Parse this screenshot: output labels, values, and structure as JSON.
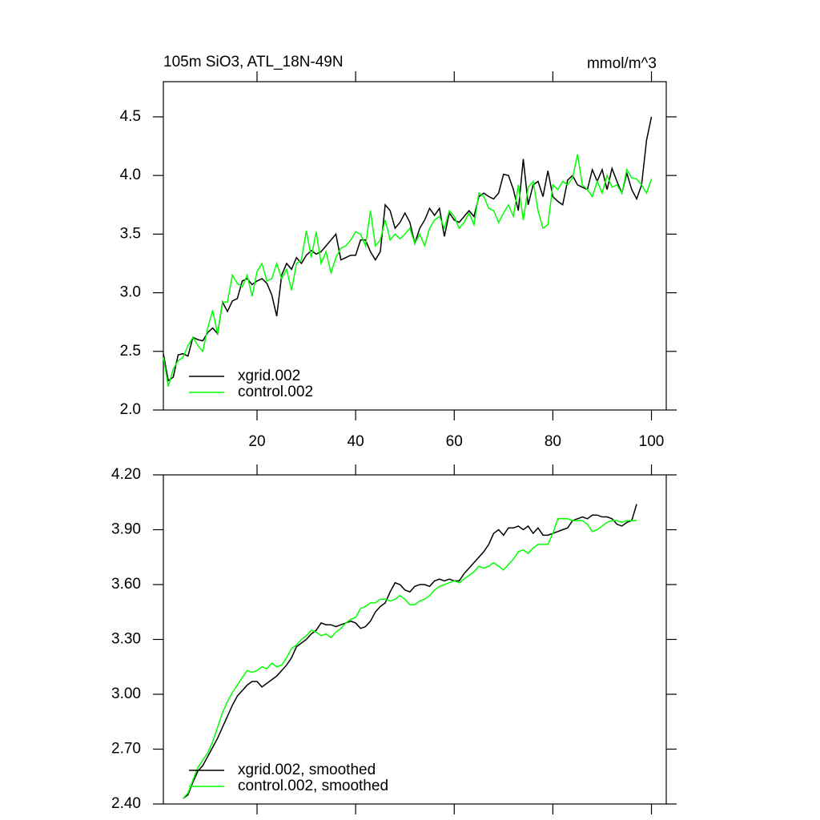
{
  "chart_data": [
    {
      "type": "line",
      "title": "105m SiO3, ATL_18N-49N",
      "units": "mmol/m^3",
      "x": [
        1,
        2,
        3,
        4,
        5,
        6,
        7,
        8,
        9,
        10,
        11,
        12,
        13,
        14,
        15,
        16,
        17,
        18,
        19,
        20,
        21,
        22,
        23,
        24,
        25,
        26,
        27,
        28,
        29,
        30,
        31,
        32,
        33,
        34,
        35,
        36,
        37,
        38,
        39,
        40,
        41,
        42,
        43,
        44,
        45,
        46,
        47,
        48,
        49,
        50,
        51,
        52,
        53,
        54,
        55,
        56,
        57,
        58,
        59,
        60,
        61,
        62,
        63,
        64,
        65,
        66,
        67,
        68,
        69,
        70,
        71,
        72,
        73,
        74,
        75,
        76,
        77,
        78,
        79,
        80,
        81,
        82,
        83,
        84,
        85,
        86,
        87,
        88,
        89,
        90,
        91,
        92,
        93,
        94,
        95,
        96,
        97,
        98,
        99,
        100
      ],
      "series": [
        {
          "name": "xgrid.002",
          "color": "#000000",
          "values": [
            2.48,
            2.25,
            2.28,
            2.47,
            2.48,
            2.46,
            2.62,
            2.6,
            2.59,
            2.66,
            2.7,
            2.65,
            2.92,
            2.84,
            2.93,
            2.95,
            3.1,
            3.12,
            3.07,
            3.1,
            3.12,
            3.08,
            2.98,
            2.8,
            3.15,
            3.25,
            3.2,
            3.3,
            3.25,
            3.32,
            3.36,
            3.33,
            3.35,
            3.4,
            3.45,
            3.5,
            3.28,
            3.3,
            3.32,
            3.32,
            3.45,
            3.45,
            3.35,
            3.28,
            3.35,
            3.75,
            3.7,
            3.55,
            3.6,
            3.68,
            3.6,
            3.42,
            3.55,
            3.62,
            3.72,
            3.66,
            3.72,
            3.48,
            3.68,
            3.62,
            3.6,
            3.65,
            3.7,
            3.65,
            3.82,
            3.85,
            3.82,
            3.8,
            3.85,
            4.01,
            4.0,
            3.88,
            3.7,
            4.14,
            3.75,
            3.92,
            3.95,
            3.82,
            4.04,
            3.82,
            3.78,
            3.75,
            3.96,
            4.0,
            3.92,
            3.9,
            3.88,
            4.05,
            3.95,
            4.05,
            3.88,
            4.06,
            3.95,
            3.85,
            4.02,
            3.88,
            3.8,
            3.92,
            4.3,
            4.5
          ]
        },
        {
          "name": "control.002",
          "color": "#00ff00",
          "values": [
            2.45,
            2.2,
            2.35,
            2.42,
            2.45,
            2.55,
            2.62,
            2.55,
            2.5,
            2.7,
            2.85,
            2.65,
            2.92,
            2.92,
            3.15,
            3.08,
            3.05,
            3.15,
            2.97,
            3.18,
            3.25,
            3.1,
            3.12,
            3.25,
            3.12,
            3.2,
            3.02,
            3.25,
            3.28,
            3.53,
            3.3,
            3.52,
            3.25,
            3.35,
            3.17,
            3.3,
            3.38,
            3.4,
            3.45,
            3.52,
            3.5,
            3.4,
            3.7,
            3.4,
            3.45,
            3.62,
            3.45,
            3.5,
            3.46,
            3.5,
            3.55,
            3.42,
            3.5,
            3.4,
            3.55,
            3.62,
            3.65,
            3.55,
            3.7,
            3.65,
            3.55,
            3.6,
            3.68,
            3.58,
            3.85,
            3.82,
            3.72,
            3.7,
            3.6,
            3.68,
            3.75,
            3.65,
            3.92,
            3.62,
            3.9,
            3.95,
            3.7,
            3.55,
            3.58,
            3.92,
            3.88,
            3.95,
            3.92,
            3.98,
            4.18,
            3.92,
            3.88,
            3.82,
            3.95,
            3.85,
            4.0,
            3.9,
            3.92,
            3.85,
            4.05,
            3.98,
            3.97,
            3.92,
            3.85,
            3.97
          ]
        }
      ],
      "xlim": [
        1,
        103
      ],
      "xticks": [
        20,
        40,
        60,
        80,
        100
      ],
      "ylim": [
        2.0,
        4.8
      ],
      "yticks": [
        {
          "value": 2.0,
          "label": "2.0"
        },
        {
          "value": 2.5,
          "label": "2.5"
        },
        {
          "value": 3.0,
          "label": "3.0"
        },
        {
          "value": 3.5,
          "label": "3.5"
        },
        {
          "value": 4.0,
          "label": "4.0"
        },
        {
          "value": 4.5,
          "label": "4.5"
        }
      ],
      "legend": "lower left"
    },
    {
      "type": "line",
      "x": [
        5,
        6,
        7,
        8,
        9,
        10,
        11,
        12,
        13,
        14,
        15,
        16,
        17,
        18,
        19,
        20,
        21,
        22,
        23,
        24,
        25,
        26,
        27,
        28,
        29,
        30,
        31,
        32,
        33,
        34,
        35,
        36,
        37,
        38,
        39,
        40,
        41,
        42,
        43,
        44,
        45,
        46,
        47,
        48,
        49,
        50,
        51,
        52,
        53,
        54,
        55,
        56,
        57,
        58,
        59,
        60,
        61,
        62,
        63,
        64,
        65,
        66,
        67,
        68,
        69,
        70,
        71,
        72,
        73,
        74,
        75,
        76,
        77,
        78,
        79,
        80,
        81,
        82,
        83,
        84,
        85,
        86,
        87,
        88,
        89,
        90,
        91,
        92,
        93,
        94,
        95,
        96,
        97
      ],
      "series": [
        {
          "name": "xgrid.002, smoothed",
          "color": "#000000",
          "values": [
            2.43,
            2.45,
            2.52,
            2.58,
            2.61,
            2.66,
            2.71,
            2.76,
            2.82,
            2.88,
            2.94,
            2.99,
            3.02,
            3.05,
            3.07,
            3.07,
            3.04,
            3.06,
            3.08,
            3.1,
            3.13,
            3.16,
            3.2,
            3.26,
            3.28,
            3.3,
            3.33,
            3.35,
            3.39,
            3.38,
            3.38,
            3.37,
            3.38,
            3.39,
            3.4,
            3.39,
            3.36,
            3.37,
            3.4,
            3.45,
            3.48,
            3.5,
            3.56,
            3.61,
            3.6,
            3.57,
            3.56,
            3.59,
            3.6,
            3.6,
            3.59,
            3.62,
            3.63,
            3.62,
            3.63,
            3.62,
            3.62,
            3.66,
            3.69,
            3.72,
            3.75,
            3.78,
            3.82,
            3.88,
            3.9,
            3.87,
            3.91,
            3.91,
            3.92,
            3.9,
            3.92,
            3.88,
            3.91,
            3.87,
            3.87,
            3.88,
            3.89,
            3.9,
            3.91,
            3.95,
            3.96,
            3.97,
            3.96,
            3.98,
            3.98,
            3.97,
            3.97,
            3.96,
            3.93,
            3.92,
            3.94,
            3.95,
            4.04
          ]
        },
        {
          "name": "control.002, smoothed",
          "color": "#00ff00",
          "values": [
            2.43,
            2.46,
            2.53,
            2.6,
            2.64,
            2.68,
            2.74,
            2.82,
            2.9,
            2.96,
            3.01,
            3.05,
            3.09,
            3.13,
            3.12,
            3.13,
            3.15,
            3.14,
            3.17,
            3.15,
            3.16,
            3.2,
            3.25,
            3.27,
            3.3,
            3.32,
            3.35,
            3.34,
            3.32,
            3.33,
            3.31,
            3.34,
            3.36,
            3.39,
            3.41,
            3.42,
            3.47,
            3.48,
            3.5,
            3.5,
            3.52,
            3.52,
            3.51,
            3.52,
            3.54,
            3.52,
            3.49,
            3.49,
            3.51,
            3.52,
            3.54,
            3.57,
            3.59,
            3.6,
            3.61,
            3.62,
            3.61,
            3.63,
            3.65,
            3.67,
            3.7,
            3.69,
            3.7,
            3.72,
            3.7,
            3.68,
            3.71,
            3.74,
            3.78,
            3.79,
            3.77,
            3.8,
            3.82,
            3.82,
            3.82,
            3.88,
            3.96,
            3.96,
            3.96,
            3.95,
            3.95,
            3.95,
            3.93,
            3.89,
            3.9,
            3.92,
            3.94,
            3.95,
            3.95,
            3.94,
            3.95,
            3.95,
            3.95
          ]
        }
      ],
      "xlim": [
        1,
        103
      ],
      "xticks": [
        20,
        40,
        60,
        80,
        100
      ],
      "ylim": [
        2.4,
        4.2
      ],
      "yticks": [
        {
          "value": 2.4,
          "label": "2.40"
        },
        {
          "value": 2.7,
          "label": "2.70"
        },
        {
          "value": 3.0,
          "label": "3.00"
        },
        {
          "value": 3.3,
          "label": "3.30"
        },
        {
          "value": 3.6,
          "label": "3.60"
        },
        {
          "value": 3.9,
          "label": "3.90"
        },
        {
          "value": 4.2,
          "label": "4.20"
        }
      ],
      "legend": "lower left"
    }
  ]
}
